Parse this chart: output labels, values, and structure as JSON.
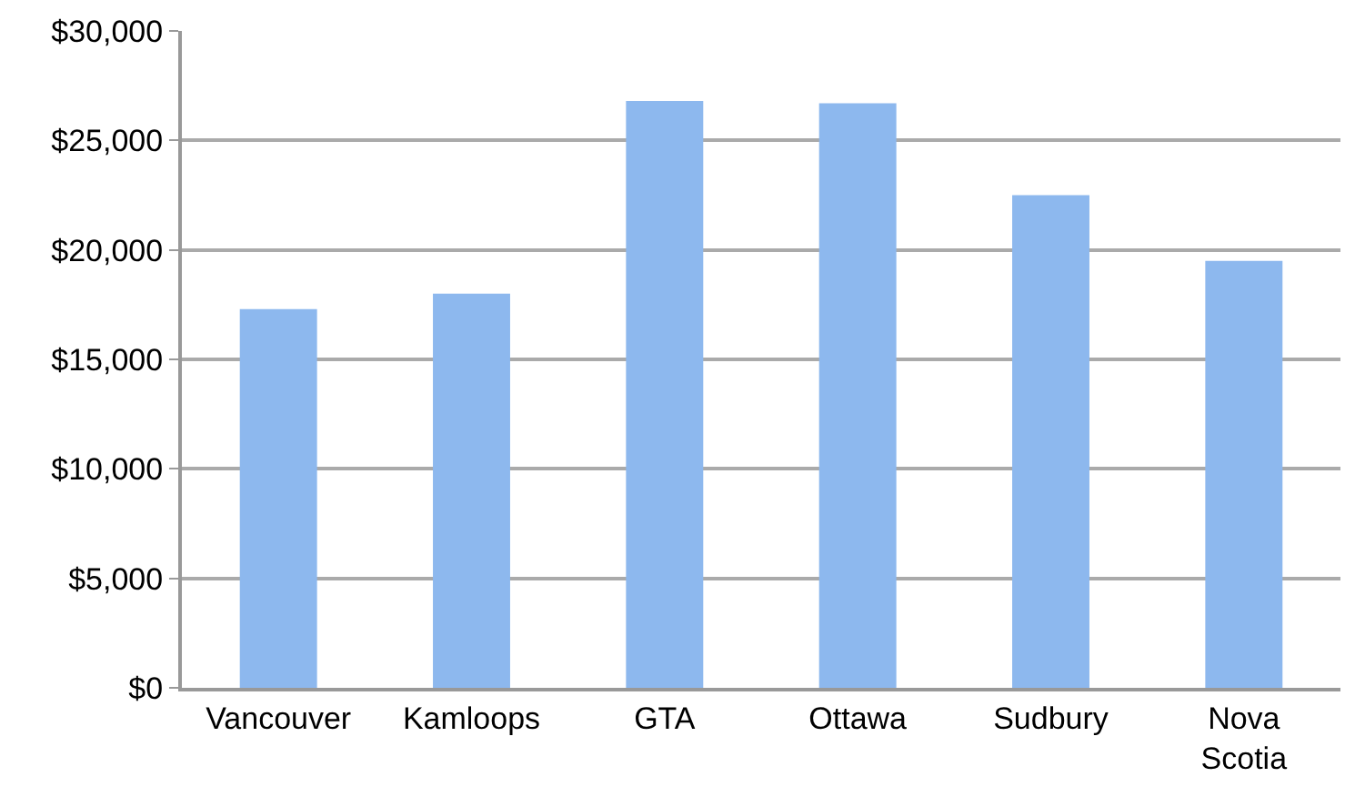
{
  "chart_data": {
    "type": "bar",
    "categories": [
      "Vancouver",
      "Kamloops",
      "GTA",
      "Ottawa",
      "Sudbury",
      "Nova Scotia"
    ],
    "values": [
      17300,
      18000,
      26800,
      26700,
      22500,
      19500
    ],
    "color": "#8db8ee",
    "ylim": [
      0,
      30000
    ],
    "yticks": [
      {
        "value": 0,
        "label": "$0"
      },
      {
        "value": 5000,
        "label": "$5,000"
      },
      {
        "value": 10000,
        "label": "$10,000"
      },
      {
        "value": 15000,
        "label": "$15,000"
      },
      {
        "value": 20000,
        "label": "$20,000"
      },
      {
        "value": 25000,
        "label": "$25,000"
      },
      {
        "value": 30000,
        "label": "$30,000"
      }
    ],
    "grid": "y",
    "legend": false
  }
}
